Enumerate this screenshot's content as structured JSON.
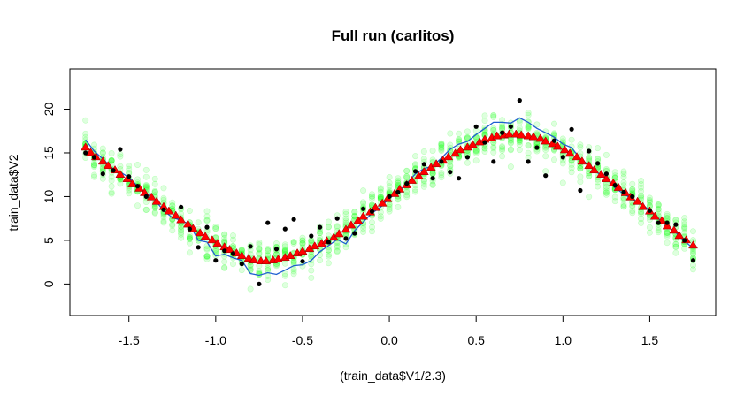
{
  "chart_data": {
    "type": "scatter",
    "title": "Full run (carlitos)",
    "xlabel": "(train_data$V1/2.3)",
    "ylabel": "train_data$V2",
    "xlim": [
      -1.84,
      1.88
    ],
    "ylim": [
      -3.6,
      24.6
    ],
    "x_ticks": [
      -1.5,
      -1.0,
      -0.5,
      0.0,
      0.5,
      1.0,
      1.5
    ],
    "x_tick_labels": [
      "-1.5",
      "-1.0",
      "-0.5",
      "0.0",
      "0.5",
      "1.0",
      "1.5"
    ],
    "y_ticks": [
      0,
      5,
      10,
      15,
      20
    ],
    "y_tick_labels": [
      "0",
      "5",
      "10",
      "15",
      "20"
    ],
    "grid": false,
    "legend": "none",
    "colors": {
      "observed": "#000000",
      "predicted_mean": "#ff0000",
      "predicted_mean_edge": "#8b0000",
      "posterior_draws": "#00ff00",
      "fitted_line": "#1f5fd0"
    },
    "observed_points": {
      "x": [
        -1.75,
        -1.7,
        -1.65,
        -1.59,
        -1.55,
        -1.5,
        -1.45,
        -1.4,
        -1.3,
        -1.2,
        -1.15,
        -1.1,
        -1.05,
        -1.0,
        -0.95,
        -0.9,
        -0.85,
        -0.8,
        -0.75,
        -0.7,
        -0.65,
        -0.6,
        -0.55,
        -0.5,
        -0.45,
        -0.4,
        -0.35,
        -0.3,
        -0.25,
        -0.2,
        -0.15,
        -0.1,
        0.0,
        0.05,
        0.1,
        0.15,
        0.2,
        0.25,
        0.3,
        0.35,
        0.4,
        0.45,
        0.5,
        0.55,
        0.6,
        0.65,
        0.7,
        0.75,
        0.8,
        0.85,
        0.9,
        0.95,
        1.0,
        1.05,
        1.1,
        1.15,
        1.2,
        1.25,
        1.3,
        1.35,
        1.4,
        1.5,
        1.55,
        1.6,
        1.65,
        1.7,
        1.75
      ],
      "y": [
        15.0,
        14.5,
        12.6,
        13.0,
        15.4,
        12.3,
        11.2,
        10.0,
        8.5,
        8.8,
        6.3,
        4.2,
        6.5,
        2.7,
        3.8,
        3.5,
        2.3,
        4.3,
        0.0,
        7.0,
        4.0,
        6.3,
        7.4,
        2.6,
        5.5,
        6.5,
        4.8,
        7.5,
        5.2,
        5.8,
        8.6,
        8.3,
        10.0,
        10.5,
        11.5,
        12.9,
        13.7,
        12.1,
        14.0,
        12.8,
        12.1,
        14.5,
        18.0,
        16.2,
        14.0,
        17.3,
        18.0,
        21.0,
        14.0,
        15.6,
        12.4,
        16.4,
        14.5,
        17.7,
        10.7,
        15.2,
        13.8,
        12.6,
        11.3,
        10.5,
        10.0,
        8.4,
        7.0,
        7.0,
        6.8,
        5.0,
        2.7
      ]
    },
    "predicted_mean": {
      "x": [
        -1.75,
        -1.72,
        -1.69,
        -1.65,
        -1.62,
        -1.58,
        -1.55,
        -1.51,
        -1.48,
        -1.44,
        -1.41,
        -1.37,
        -1.34,
        -1.3,
        -1.27,
        -1.23,
        -1.2,
        -1.16,
        -1.13,
        -1.09,
        -1.06,
        -1.02,
        -0.99,
        -0.95,
        -0.92,
        -0.88,
        -0.85,
        -0.81,
        -0.78,
        -0.74,
        -0.71,
        -0.67,
        -0.64,
        -0.6,
        -0.57,
        -0.53,
        -0.5,
        -0.46,
        -0.43,
        -0.39,
        -0.36,
        -0.32,
        -0.29,
        -0.25,
        -0.22,
        -0.18,
        -0.15,
        -0.11,
        -0.08,
        -0.04,
        -0.01,
        0.03,
        0.06,
        0.1,
        0.13,
        0.17,
        0.2,
        0.24,
        0.27,
        0.31,
        0.34,
        0.38,
        0.41,
        0.45,
        0.48,
        0.52,
        0.55,
        0.59,
        0.62,
        0.66,
        0.69,
        0.73,
        0.76,
        0.8,
        0.83,
        0.87,
        0.9,
        0.94,
        0.97,
        1.01,
        1.04,
        1.08,
        1.11,
        1.15,
        1.18,
        1.22,
        1.25,
        1.29,
        1.32,
        1.36,
        1.39,
        1.43,
        1.46,
        1.5,
        1.53,
        1.57,
        1.6,
        1.64,
        1.67,
        1.71,
        1.75
      ],
      "y": [
        15.6,
        15.0,
        14.5,
        14.0,
        13.5,
        13.0,
        12.5,
        12.0,
        11.4,
        10.9,
        10.4,
        9.9,
        9.4,
        8.8,
        8.3,
        7.8,
        7.3,
        6.8,
        6.3,
        5.8,
        5.4,
        5.0,
        4.6,
        4.2,
        3.9,
        3.5,
        3.2,
        2.9,
        2.7,
        2.6,
        2.6,
        2.7,
        2.8,
        3.0,
        3.2,
        3.5,
        3.7,
        4.0,
        4.3,
        4.6,
        4.9,
        5.3,
        5.7,
        6.2,
        6.7,
        7.2,
        7.7,
        8.2,
        8.7,
        9.2,
        9.7,
        10.3,
        10.8,
        11.3,
        11.8,
        12.3,
        12.8,
        13.3,
        13.7,
        14.1,
        14.5,
        14.9,
        15.3,
        15.6,
        15.9,
        16.2,
        16.5,
        16.7,
        16.9,
        17.0,
        17.1,
        17.1,
        17.0,
        16.9,
        16.8,
        16.6,
        16.3,
        16.0,
        15.7,
        15.3,
        14.9,
        14.5,
        14.0,
        13.5,
        13.0,
        12.5,
        12.0,
        11.5,
        11.0,
        10.4,
        9.9,
        9.4,
        8.8,
        8.3,
        7.7,
        7.2,
        6.6,
        6.1,
        5.5,
        5.0,
        4.4
      ]
    },
    "fitted_line": {
      "x": [
        -1.75,
        -1.7,
        -1.65,
        -1.6,
        -1.55,
        -1.5,
        -1.45,
        -1.4,
        -1.35,
        -1.3,
        -1.25,
        -1.2,
        -1.15,
        -1.1,
        -1.05,
        -1.0,
        -0.95,
        -0.9,
        -0.85,
        -0.8,
        -0.75,
        -0.7,
        -0.65,
        -0.6,
        -0.55,
        -0.5,
        -0.45,
        -0.4,
        -0.35,
        -0.3,
        -0.25,
        -0.2,
        -0.15,
        -0.1,
        -0.05,
        0.0,
        0.05,
        0.1,
        0.15,
        0.2,
        0.25,
        0.3,
        0.35,
        0.4,
        0.45,
        0.5,
        0.55,
        0.6,
        0.65,
        0.7,
        0.75,
        0.8,
        0.85,
        0.9,
        0.95,
        1.0,
        1.05,
        1.1,
        1.15,
        1.2,
        1.25,
        1.3,
        1.35,
        1.4,
        1.45,
        1.5,
        1.55,
        1.6,
        1.65,
        1.7,
        1.75
      ],
      "y": [
        16.5,
        15.2,
        14.3,
        13.3,
        12.8,
        12.2,
        11.2,
        10.4,
        9.6,
        8.4,
        7.6,
        7.3,
        6.8,
        5.0,
        4.8,
        3.2,
        3.4,
        3.0,
        2.7,
        1.2,
        1.0,
        1.3,
        1.1,
        1.6,
        2.1,
        2.2,
        2.7,
        3.7,
        4.4,
        5.1,
        4.6,
        6.1,
        7.1,
        8.1,
        8.8,
        9.8,
        10.5,
        11.5,
        12.6,
        13.2,
        13.5,
        14.4,
        15.4,
        16.0,
        16.3,
        17.1,
        17.8,
        18.5,
        18.5,
        18.4,
        19.0,
        18.5,
        17.8,
        17.3,
        16.8,
        16.0,
        15.6,
        14.3,
        13.6,
        12.7,
        12.1,
        11.0,
        10.3,
        9.7,
        9.2,
        8.4,
        7.5,
        6.6,
        5.9,
        4.9,
        4.1
      ]
    },
    "posterior_draws": {
      "x_start": -1.75,
      "x_end": 1.75,
      "x_count": 71,
      "spread_sd": 1.1,
      "draws_per_x": 16,
      "center_series": "predicted_mean"
    }
  }
}
